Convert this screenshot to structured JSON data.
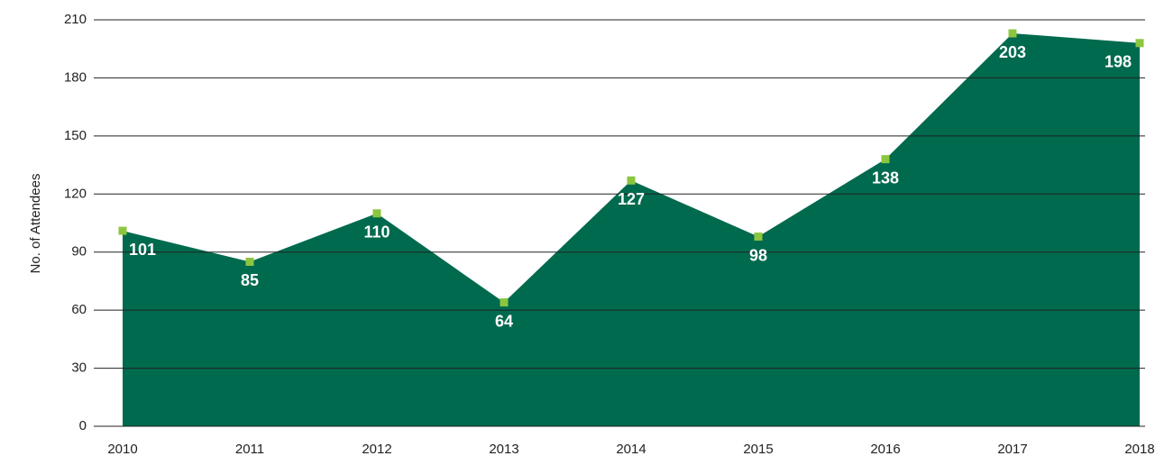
{
  "chart_data": {
    "type": "area",
    "y_label": "No. of Attendees",
    "categories": [
      "2010",
      "2011",
      "2012",
      "2013",
      "2014",
      "2015",
      "2016",
      "2017",
      "2018"
    ],
    "values": [
      101,
      85,
      110,
      64,
      127,
      98,
      138,
      203,
      198
    ],
    "color": "#006a4e",
    "marker_color": "#8cc63f",
    "label_color": "#ffffff",
    "ylim": [
      0,
      210
    ],
    "yticks": [
      0,
      30,
      60,
      90,
      120,
      150,
      180,
      210
    ],
    "grid": true
  }
}
